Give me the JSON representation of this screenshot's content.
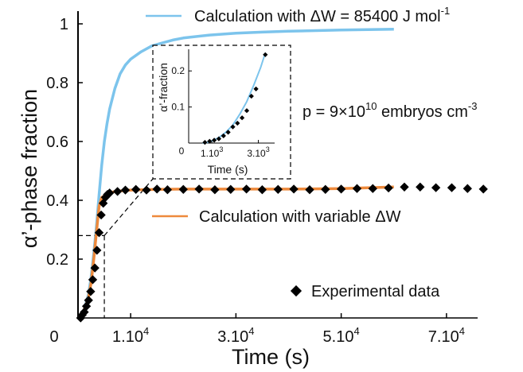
{
  "chart_data": [
    {
      "type": "line",
      "xlabel": "Time (s)",
      "ylabel": "α’-phase fraction",
      "xlim": [
        0,
        80000
      ],
      "ylim": [
        0,
        1
      ],
      "x_ticks": [
        {
          "value": 10000,
          "label": "1.10",
          "exp": "4"
        },
        {
          "value": 30000,
          "label": "3.10",
          "exp": "4"
        },
        {
          "value": 50000,
          "label": "5.10",
          "exp": "4"
        },
        {
          "value": 70000,
          "label": "7.10",
          "exp": "4"
        }
      ],
      "x_origin_label": "0",
      "y_ticks": [
        {
          "value": 0.2,
          "label": "0.2"
        },
        {
          "value": 0.4,
          "label": "0.4"
        },
        {
          "value": 0.6,
          "label": "0.6"
        },
        {
          "value": 0.8,
          "label": "0.8"
        },
        {
          "value": 1.0,
          "label": "1"
        }
      ],
      "series": [
        {
          "name": "Calculation with ΔW = 85400 J mol-1",
          "legend_text": "Calculation with ΔW = 85400 J mol",
          "legend_sup": "-1",
          "color": "#7cc4ec",
          "style": "line",
          "x": [
            500,
            1000,
            1500,
            2000,
            2500,
            3000,
            3500,
            4000,
            4500,
            5000,
            5500,
            6000,
            7000,
            8000,
            9000,
            10000,
            12000,
            14000,
            16000,
            18000,
            20000,
            25000,
            30000,
            35000,
            40000,
            50000,
            60000
          ],
          "y": [
            0.0,
            0.02,
            0.05,
            0.08,
            0.14,
            0.22,
            0.31,
            0.42,
            0.52,
            0.6,
            0.66,
            0.71,
            0.78,
            0.83,
            0.86,
            0.88,
            0.905,
            0.925,
            0.935,
            0.945,
            0.952,
            0.962,
            0.968,
            0.972,
            0.975,
            0.979,
            0.982
          ]
        },
        {
          "name": "Calculation with variable ΔW",
          "legend_text": "Calculation with variable ΔW",
          "color": "#ee8a3c",
          "style": "line",
          "x": [
            1000,
            2000,
            2500,
            3000,
            3500,
            4000,
            4500,
            5000,
            5500,
            6000,
            7000,
            8000,
            10000,
            15000,
            20000,
            30000,
            40000,
            50000,
            60000
          ],
          "y": [
            0.02,
            0.07,
            0.12,
            0.2,
            0.29,
            0.38,
            0.41,
            0.415,
            0.42,
            0.425,
            0.43,
            0.432,
            0.435,
            0.437,
            0.438,
            0.438,
            0.438,
            0.44,
            0.445
          ]
        },
        {
          "name": "Experimental data",
          "legend_text": "Experimental data",
          "color": "#000000",
          "style": "markers",
          "marker": "diamond",
          "x": [
            500,
            800,
            1200,
            1600,
            2000,
            2400,
            2800,
            3200,
            3600,
            4000,
            4400,
            4800,
            5200,
            5600,
            6000,
            7500,
            9000,
            11000,
            13000,
            15000,
            17000,
            20000,
            23000,
            26000,
            29000,
            32000,
            35000,
            38000,
            41000,
            44000,
            47000,
            50000,
            53000,
            56000,
            59000,
            62000,
            65000,
            68000,
            71000,
            74000,
            77000
          ],
          "y": [
            0.0,
            0.01,
            0.02,
            0.04,
            0.06,
            0.09,
            0.13,
            0.17,
            0.23,
            0.29,
            0.35,
            0.39,
            0.41,
            0.42,
            0.425,
            0.43,
            0.435,
            0.437,
            0.435,
            0.438,
            0.436,
            0.437,
            0.438,
            0.436,
            0.437,
            0.438,
            0.436,
            0.437,
            0.438,
            0.436,
            0.437,
            0.438,
            0.44,
            0.44,
            0.442,
            0.445,
            0.445,
            0.443,
            0.443,
            0.44,
            0.438
          ]
        }
      ],
      "annotation": {
        "text": "p = 9×10",
        "sup": "10",
        "tail": " embryos cm",
        "sup2": "-3"
      },
      "zoom_box": {
        "x": [
          0,
          5000
        ],
        "y": [
          0,
          0.28
        ]
      }
    },
    {
      "type": "line",
      "role": "inset",
      "xlabel": "Time (s)",
      "ylabel": "α’-fraction",
      "xlim": [
        0,
        3700
      ],
      "ylim": [
        0,
        0.26
      ],
      "x_ticks": [
        {
          "value": 1000,
          "label": "1.10",
          "exp": "3"
        },
        {
          "value": 3000,
          "label": "3.10",
          "exp": "3"
        }
      ],
      "x_origin_label": "0",
      "y_ticks": [
        {
          "value": 0.1,
          "label": "0.1"
        },
        {
          "value": 0.2,
          "label": "0.2"
        }
      ],
      "series": [
        {
          "name": "Calculation with ΔW = 85400 J mol-1",
          "color": "#7cc4ec",
          "style": "line",
          "x": [
            600,
            800,
            1000,
            1300,
            1600,
            1900,
            2200,
            2500,
            2800,
            3100,
            3300
          ],
          "y": [
            0.0,
            0.002,
            0.006,
            0.015,
            0.03,
            0.05,
            0.08,
            0.115,
            0.16,
            0.21,
            0.25
          ]
        },
        {
          "name": "Experimental data",
          "color": "#000000",
          "style": "markers",
          "marker": "diamond",
          "x": [
            700,
            900,
            1100,
            1300,
            1500,
            1700,
            1900,
            2100,
            2300,
            2500,
            2700,
            2900,
            3300
          ],
          "y": [
            0.002,
            0.005,
            0.008,
            0.012,
            0.02,
            0.03,
            0.045,
            0.055,
            0.07,
            0.09,
            0.13,
            0.15,
            0.245
          ]
        }
      ]
    }
  ]
}
